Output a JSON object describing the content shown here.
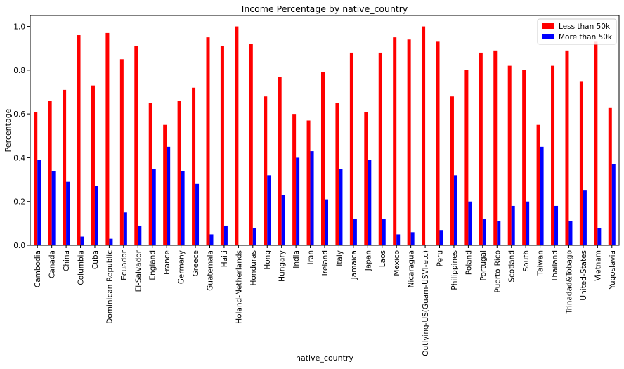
{
  "chart_data": {
    "type": "bar",
    "title": "Income Percentage by native_country",
    "xlabel": "native_country",
    "ylabel": "Percentage",
    "ylim": [
      0,
      1.05
    ],
    "yticks": [
      "0.0",
      "0.2",
      "0.4",
      "0.6",
      "0.8",
      "1.0"
    ],
    "legend_position": "top-right",
    "categories": [
      "Cambodia",
      "Canada",
      "China",
      "Columbia",
      "Cuba",
      "Dominican-Republic",
      "Ecuador",
      "El-Salvador",
      "England",
      "France",
      "Germany",
      "Greece",
      "Guatemala",
      "Haiti",
      "Holand-Netherlands",
      "Honduras",
      "Hong",
      "Hungary",
      "India",
      "Iran",
      "Ireland",
      "Italy",
      "Jamaica",
      "Japan",
      "Laos",
      "Mexico",
      "Nicaragua",
      "Outlying-US(Guam-USVI-etc)",
      "Peru",
      "Philippines",
      "Poland",
      "Portugal",
      "Puerto-Rico",
      "Scotland",
      "South",
      "Taiwan",
      "Thailand",
      "Trinadad&Tobago",
      "United-States",
      "Vietnam",
      "Yugoslavia"
    ],
    "series": [
      {
        "name": "Less than 50k",
        "color": "#ff0000",
        "values": [
          0.61,
          0.66,
          0.71,
          0.96,
          0.73,
          0.97,
          0.85,
          0.91,
          0.65,
          0.55,
          0.66,
          0.72,
          0.95,
          0.91,
          1.0,
          0.92,
          0.68,
          0.77,
          0.6,
          0.57,
          0.79,
          0.65,
          0.88,
          0.61,
          0.88,
          0.95,
          0.94,
          1.0,
          0.93,
          0.68,
          0.8,
          0.88,
          0.89,
          0.82,
          0.8,
          0.55,
          0.82,
          0.89,
          0.75,
          0.93,
          0.63
        ]
      },
      {
        "name": "More than 50k",
        "color": "#0000ff",
        "values": [
          0.39,
          0.34,
          0.29,
          0.04,
          0.27,
          0.03,
          0.15,
          0.09,
          0.35,
          0.45,
          0.34,
          0.28,
          0.05,
          0.09,
          0.0,
          0.08,
          0.32,
          0.23,
          0.4,
          0.43,
          0.21,
          0.35,
          0.12,
          0.39,
          0.12,
          0.05,
          0.06,
          0.0,
          0.07,
          0.32,
          0.2,
          0.12,
          0.11,
          0.18,
          0.2,
          0.45,
          0.18,
          0.11,
          0.25,
          0.08,
          0.37
        ]
      }
    ]
  }
}
